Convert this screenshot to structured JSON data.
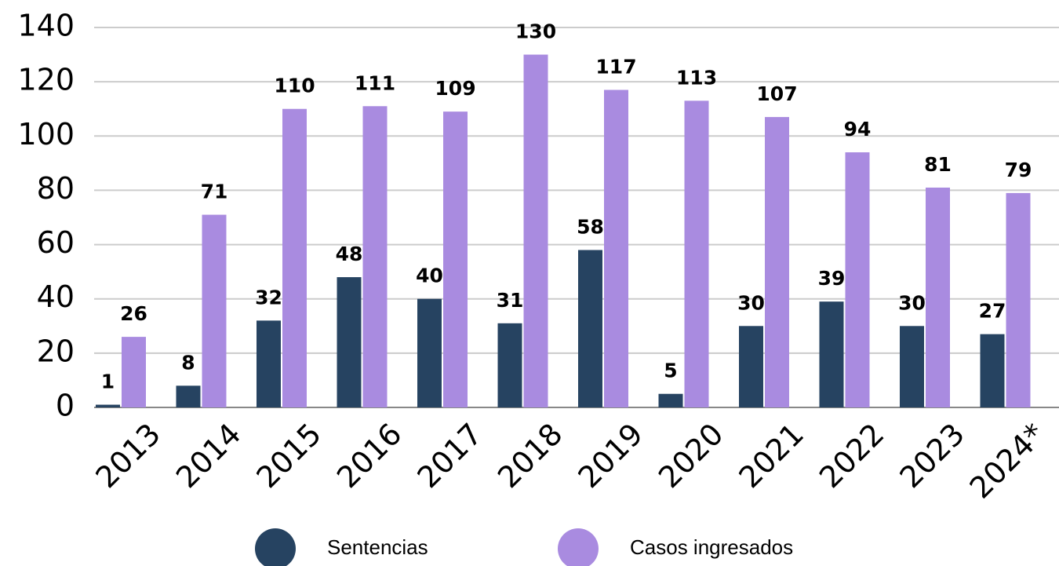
{
  "chart_data": {
    "type": "bar",
    "categories": [
      "2013",
      "2014",
      "2015",
      "2016",
      "2017",
      "2018",
      "2019",
      "2020",
      "2021",
      "2022",
      "2023",
      "2024*"
    ],
    "series": [
      {
        "name": "Sentencias",
        "color": "#264361",
        "values": [
          1,
          8,
          32,
          48,
          40,
          31,
          58,
          5,
          30,
          39,
          30,
          27
        ]
      },
      {
        "name": "Casos ingresados",
        "color": "#a98be0",
        "values": [
          26,
          71,
          110,
          111,
          109,
          130,
          117,
          113,
          107,
          94,
          81,
          79
        ]
      }
    ],
    "ylim": [
      0,
      140
    ],
    "yticks": [
      0,
      20,
      40,
      60,
      80,
      100,
      120,
      140
    ],
    "grid": true,
    "legend": "bottom"
  }
}
